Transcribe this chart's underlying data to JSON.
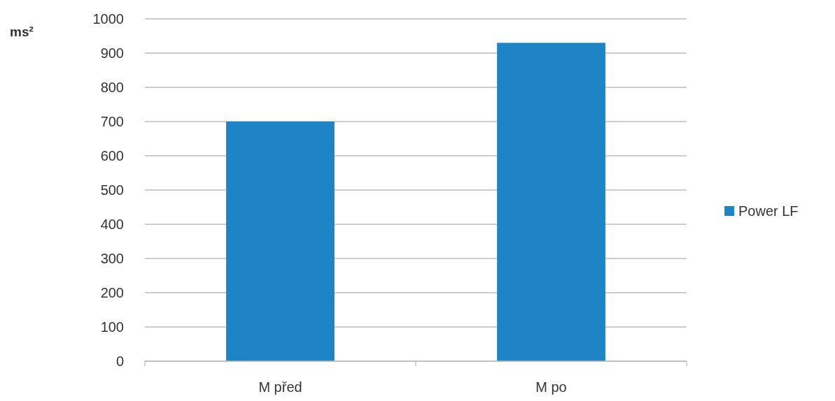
{
  "chart_data": {
    "type": "bar",
    "ylabel": "ms²",
    "categories": [
      "M před",
      "M po"
    ],
    "series": [
      {
        "name": "Power LF",
        "color": "#1f84c6",
        "values": [
          700,
          930
        ]
      }
    ],
    "ylim": [
      0,
      1000
    ],
    "yticks": [
      0,
      100,
      200,
      300,
      400,
      500,
      600,
      700,
      800,
      900,
      1000
    ],
    "grid": "y",
    "legend": "right"
  }
}
